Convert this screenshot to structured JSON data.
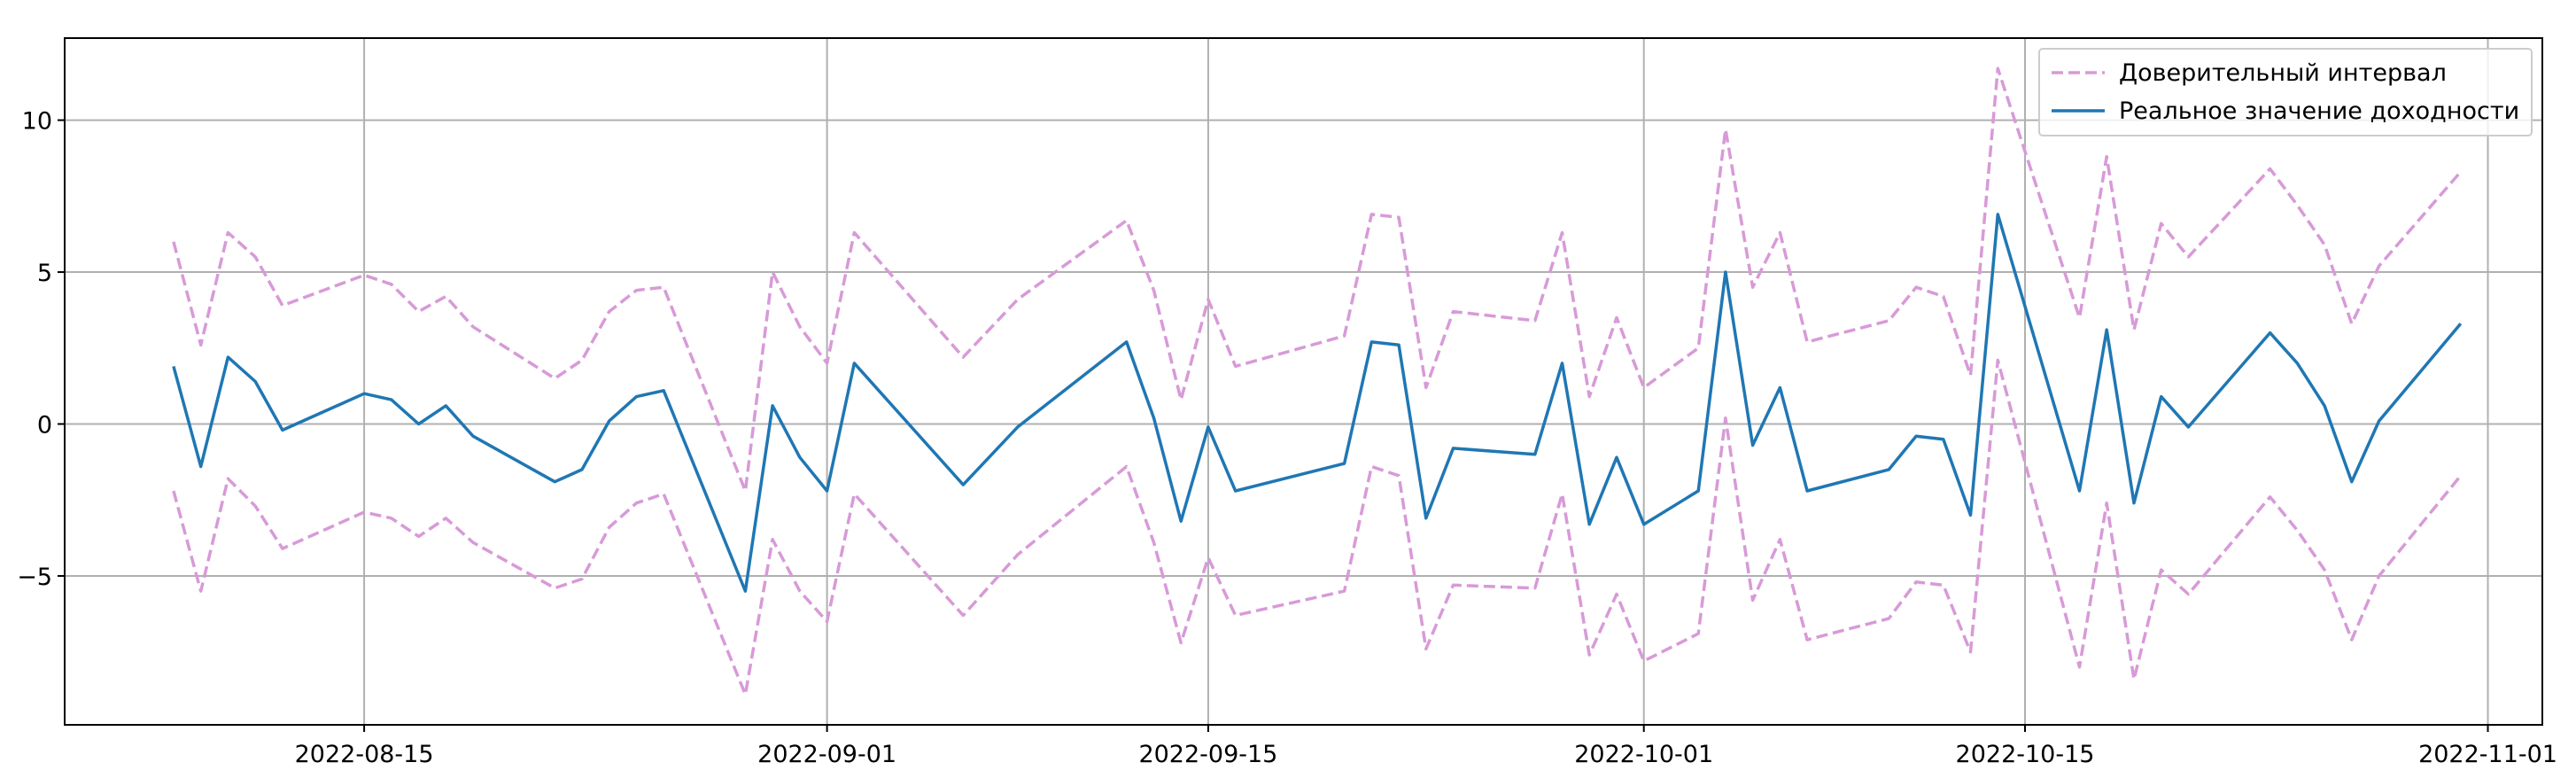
{
  "chart_data": {
    "type": "line",
    "title": "",
    "xlabel": "",
    "ylabel": "",
    "grid": true,
    "legend_position": "top-right",
    "x_ticks": [
      "2022-08-15",
      "2022-09-01",
      "2022-09-15",
      "2022-10-01",
      "2022-10-15",
      "2022-11-01"
    ],
    "y_ticks": [
      -5,
      0,
      5,
      10
    ],
    "y_tick_labels": [
      "−5",
      "0",
      "5",
      "10"
    ],
    "x_range": [
      "2022-08-04",
      "2022-11-03"
    ],
    "ylim": [
      -9.9,
      12.7
    ],
    "series": [
      {
        "name": "Доверительный интервал",
        "style": "dashed",
        "color": "#d89ad8",
        "points": [
          [
            "2022-08-08",
            6.0
          ],
          [
            "2022-08-09",
            2.6
          ],
          [
            "2022-08-10",
            6.3
          ],
          [
            "2022-08-11",
            5.5
          ],
          [
            "2022-08-12",
            3.9
          ],
          [
            "2022-08-15",
            4.9
          ],
          [
            "2022-08-16",
            4.6
          ],
          [
            "2022-08-17",
            3.7
          ],
          [
            "2022-08-18",
            4.2
          ],
          [
            "2022-08-19",
            3.2
          ],
          [
            "2022-08-22",
            1.5
          ],
          [
            "2022-08-23",
            2.1
          ],
          [
            "2022-08-24",
            3.7
          ],
          [
            "2022-08-25",
            4.4
          ],
          [
            "2022-08-26",
            4.5
          ],
          [
            "2022-08-29",
            -2.2
          ],
          [
            "2022-08-30",
            5.0
          ],
          [
            "2022-08-31",
            3.2
          ],
          [
            "2022-09-01",
            2.0
          ],
          [
            "2022-09-02",
            6.3
          ],
          [
            "2022-09-06",
            2.2
          ],
          [
            "2022-09-08",
            4.1
          ],
          [
            "2022-09-12",
            6.7
          ],
          [
            "2022-09-13",
            4.4
          ],
          [
            "2022-09-14",
            0.8
          ],
          [
            "2022-09-15",
            4.1
          ],
          [
            "2022-09-16",
            1.9
          ],
          [
            "2022-09-20",
            2.9
          ],
          [
            "2022-09-21",
            6.9
          ],
          [
            "2022-09-22",
            6.8
          ],
          [
            "2022-09-23",
            1.2
          ],
          [
            "2022-09-24",
            3.7
          ],
          [
            "2022-09-27",
            3.4
          ],
          [
            "2022-09-28",
            6.3
          ],
          [
            "2022-09-29",
            0.9
          ],
          [
            "2022-09-30",
            3.5
          ],
          [
            "2022-10-01",
            1.2
          ],
          [
            "2022-10-03",
            2.5
          ],
          [
            "2022-10-04",
            9.7
          ],
          [
            "2022-10-05",
            4.5
          ],
          [
            "2022-10-06",
            6.3
          ],
          [
            "2022-10-07",
            2.7
          ],
          [
            "2022-10-10",
            3.4
          ],
          [
            "2022-10-11",
            4.5
          ],
          [
            "2022-10-12",
            4.2
          ],
          [
            "2022-10-13",
            1.6
          ],
          [
            "2022-10-14",
            11.7
          ],
          [
            "2022-10-17",
            3.5
          ],
          [
            "2022-10-18",
            8.8
          ],
          [
            "2022-10-19",
            3.1
          ],
          [
            "2022-10-20",
            6.6
          ],
          [
            "2022-10-21",
            5.5
          ],
          [
            "2022-10-24",
            8.4
          ],
          [
            "2022-10-25",
            7.2
          ],
          [
            "2022-10-26",
            5.9
          ],
          [
            "2022-10-27",
            3.3
          ],
          [
            "2022-10-28",
            5.2
          ],
          [
            "2022-10-31",
            8.3
          ]
        ]
      },
      {
        "name": "",
        "style": "dashed",
        "color": "#d89ad8",
        "points": [
          [
            "2022-08-08",
            -2.2
          ],
          [
            "2022-08-09",
            -5.5
          ],
          [
            "2022-08-10",
            -1.8
          ],
          [
            "2022-08-11",
            -2.7
          ],
          [
            "2022-08-12",
            -4.1
          ],
          [
            "2022-08-15",
            -2.9
          ],
          [
            "2022-08-16",
            -3.1
          ],
          [
            "2022-08-17",
            -3.7
          ],
          [
            "2022-08-18",
            -3.1
          ],
          [
            "2022-08-19",
            -3.9
          ],
          [
            "2022-08-22",
            -5.4
          ],
          [
            "2022-08-23",
            -5.1
          ],
          [
            "2022-08-24",
            -3.4
          ],
          [
            "2022-08-25",
            -2.6
          ],
          [
            "2022-08-26",
            -2.3
          ],
          [
            "2022-08-29",
            -8.9
          ],
          [
            "2022-08-30",
            -3.8
          ],
          [
            "2022-08-31",
            -5.5
          ],
          [
            "2022-09-01",
            -6.5
          ],
          [
            "2022-09-02",
            -2.3
          ],
          [
            "2022-09-06",
            -6.3
          ],
          [
            "2022-09-08",
            -4.3
          ],
          [
            "2022-09-12",
            -1.4
          ],
          [
            "2022-09-13",
            -3.9
          ],
          [
            "2022-09-14",
            -7.2
          ],
          [
            "2022-09-15",
            -4.4
          ],
          [
            "2022-09-16",
            -6.3
          ],
          [
            "2022-09-20",
            -5.5
          ],
          [
            "2022-09-21",
            -1.4
          ],
          [
            "2022-09-22",
            -1.7
          ],
          [
            "2022-09-23",
            -7.4
          ],
          [
            "2022-09-24",
            -5.3
          ],
          [
            "2022-09-27",
            -5.4
          ],
          [
            "2022-09-28",
            -2.3
          ],
          [
            "2022-09-29",
            -7.6
          ],
          [
            "2022-09-30",
            -5.6
          ],
          [
            "2022-10-01",
            -7.8
          ],
          [
            "2022-10-03",
            -6.9
          ],
          [
            "2022-10-04",
            0.2
          ],
          [
            "2022-10-05",
            -5.8
          ],
          [
            "2022-10-06",
            -3.8
          ],
          [
            "2022-10-07",
            -7.1
          ],
          [
            "2022-10-10",
            -6.4
          ],
          [
            "2022-10-11",
            -5.2
          ],
          [
            "2022-10-12",
            -5.3
          ],
          [
            "2022-10-13",
            -7.5
          ],
          [
            "2022-10-14",
            2.1
          ],
          [
            "2022-10-17",
            -8.0
          ],
          [
            "2022-10-18",
            -2.6
          ],
          [
            "2022-10-19",
            -8.4
          ],
          [
            "2022-10-20",
            -4.8
          ],
          [
            "2022-10-21",
            -5.6
          ],
          [
            "2022-10-24",
            -2.4
          ],
          [
            "2022-10-25",
            -3.5
          ],
          [
            "2022-10-26",
            -4.8
          ],
          [
            "2022-10-27",
            -7.1
          ],
          [
            "2022-10-28",
            -5.0
          ],
          [
            "2022-10-31",
            -1.7
          ]
        ]
      },
      {
        "name": "Реальное значение доходности",
        "style": "solid",
        "color": "#1f77b4",
        "points": [
          [
            "2022-08-08",
            1.9
          ],
          [
            "2022-08-09",
            -1.4
          ],
          [
            "2022-08-10",
            2.2
          ],
          [
            "2022-08-11",
            1.4
          ],
          [
            "2022-08-12",
            -0.2
          ],
          [
            "2022-08-15",
            1.0
          ],
          [
            "2022-08-16",
            0.8
          ],
          [
            "2022-08-17",
            0.0
          ],
          [
            "2022-08-18",
            0.6
          ],
          [
            "2022-08-19",
            -0.4
          ],
          [
            "2022-08-22",
            -1.9
          ],
          [
            "2022-08-23",
            -1.5
          ],
          [
            "2022-08-24",
            0.1
          ],
          [
            "2022-08-25",
            0.9
          ],
          [
            "2022-08-26",
            1.1
          ],
          [
            "2022-08-29",
            -5.5
          ],
          [
            "2022-08-30",
            0.6
          ],
          [
            "2022-08-31",
            -1.1
          ],
          [
            "2022-09-01",
            -2.2
          ],
          [
            "2022-09-02",
            2.0
          ],
          [
            "2022-09-06",
            -2.0
          ],
          [
            "2022-09-08",
            -0.1
          ],
          [
            "2022-09-12",
            2.7
          ],
          [
            "2022-09-13",
            0.2
          ],
          [
            "2022-09-14",
            -3.2
          ],
          [
            "2022-09-15",
            -0.1
          ],
          [
            "2022-09-16",
            -2.2
          ],
          [
            "2022-09-20",
            -1.3
          ],
          [
            "2022-09-21",
            2.7
          ],
          [
            "2022-09-22",
            2.6
          ],
          [
            "2022-09-23",
            -3.1
          ],
          [
            "2022-09-24",
            -0.8
          ],
          [
            "2022-09-27",
            -1.0
          ],
          [
            "2022-09-28",
            2.0
          ],
          [
            "2022-09-29",
            -3.3
          ],
          [
            "2022-09-30",
            -1.1
          ],
          [
            "2022-10-01",
            -3.3
          ],
          [
            "2022-10-03",
            -2.2
          ],
          [
            "2022-10-04",
            5.0
          ],
          [
            "2022-10-05",
            -0.7
          ],
          [
            "2022-10-06",
            1.2
          ],
          [
            "2022-10-07",
            -2.2
          ],
          [
            "2022-10-10",
            -1.5
          ],
          [
            "2022-10-11",
            -0.4
          ],
          [
            "2022-10-12",
            -0.5
          ],
          [
            "2022-10-13",
            -3.0
          ],
          [
            "2022-10-14",
            6.9
          ],
          [
            "2022-10-17",
            -2.2
          ],
          [
            "2022-10-18",
            3.1
          ],
          [
            "2022-10-19",
            -2.6
          ],
          [
            "2022-10-20",
            0.9
          ],
          [
            "2022-10-21",
            -0.1
          ],
          [
            "2022-10-24",
            3.0
          ],
          [
            "2022-10-25",
            2.0
          ],
          [
            "2022-10-26",
            0.6
          ],
          [
            "2022-10-27",
            -1.9
          ],
          [
            "2022-10-28",
            0.1
          ],
          [
            "2022-10-31",
            3.3
          ]
        ]
      }
    ]
  }
}
